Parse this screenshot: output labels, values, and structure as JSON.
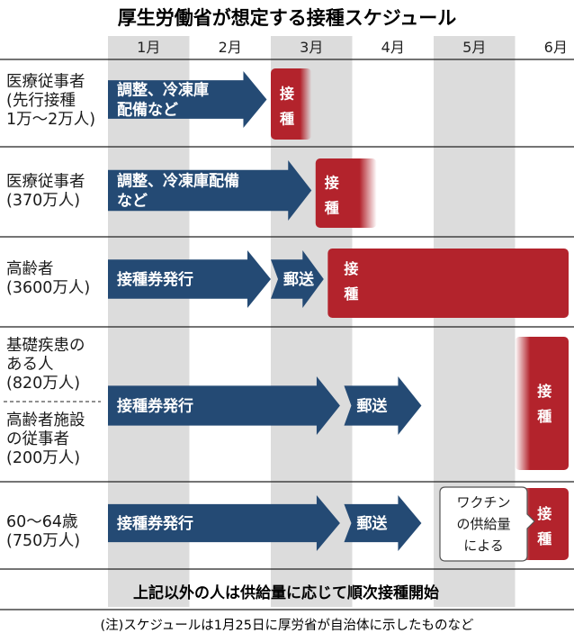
{
  "chart_data": {
    "type": "gantt",
    "title": "厚生労働省が想定する接種スケジュール",
    "months": [
      "1月",
      "2月",
      "3月",
      "4月",
      "5月",
      "6月"
    ],
    "rows": [
      {
        "label_lines": [
          "医療従事者",
          "(先行接種",
          "1万〜2万人)"
        ],
        "phases": [
          {
            "label_lines": [
              "調整、冷凍庫",
              "配備など"
            ],
            "kind": "arrow",
            "start": 1.0,
            "end": 2.95
          },
          {
            "label_lines": [
              "接",
              "種"
            ],
            "kind": "vaccination",
            "start": 3.0,
            "end": 3.5
          }
        ]
      },
      {
        "label_lines": [
          "医療従事者",
          "(370万人)"
        ],
        "phases": [
          {
            "label_lines": [
              "調整、冷凍庫配備",
              "など"
            ],
            "kind": "arrow",
            "start": 1.0,
            "end": 3.5
          },
          {
            "label_lines": [
              "接",
              "種"
            ],
            "kind": "vaccination",
            "start": 3.55,
            "end": 4.3
          }
        ]
      },
      {
        "label_lines": [
          "高齢者",
          "(3600万人)"
        ],
        "phases": [
          {
            "label_lines": [
              "接種券発行"
            ],
            "kind": "arrow",
            "start": 1.0,
            "end": 3.0
          },
          {
            "label_lines": [
              "郵送"
            ],
            "kind": "arrow",
            "start": 3.0,
            "end": 3.65
          },
          {
            "label_lines": [
              "接",
              "種"
            ],
            "kind": "vaccination",
            "start": 3.7,
            "end": 7.0
          }
        ]
      },
      {
        "label_lines": [
          "基礎疾患の",
          "ある人",
          "(820万人)",
          "高齢者施設",
          "の従事者",
          "(200万人)"
        ],
        "phases": [
          {
            "label_lines": [
              "接種券発行"
            ],
            "kind": "arrow",
            "start": 1.0,
            "end": 3.85
          },
          {
            "label_lines": [
              "郵送"
            ],
            "kind": "arrow",
            "start": 3.9,
            "end": 4.85
          },
          {
            "label_lines": [
              "接",
              "種"
            ],
            "kind": "vaccination",
            "start": 6.0,
            "end": 6.5
          }
        ]
      },
      {
        "label_lines": [
          "60〜64歳",
          "(750万人)"
        ],
        "phases": [
          {
            "label_lines": [
              "接種券発行"
            ],
            "kind": "arrow",
            "start": 1.0,
            "end": 3.85
          },
          {
            "label_lines": [
              "郵送"
            ],
            "kind": "arrow",
            "start": 3.9,
            "end": 4.85
          },
          {
            "label_lines": [
              "接",
              "種"
            ],
            "kind": "vaccination",
            "start": 6.0,
            "end": 6.45
          }
        ]
      }
    ],
    "callout_lines": [
      "ワクチン",
      "の供給量",
      "による"
    ],
    "footer": "上記以外の人は供給量に応じて順次接種開始",
    "note": "(注)スケジュールは1月25日に厚労省が自治体に示したものなど",
    "colors": {
      "arrow": "#244a74",
      "vaccination": "#b3232c",
      "month_stripe": "#dcdcdc",
      "rule": "#222222"
    }
  }
}
